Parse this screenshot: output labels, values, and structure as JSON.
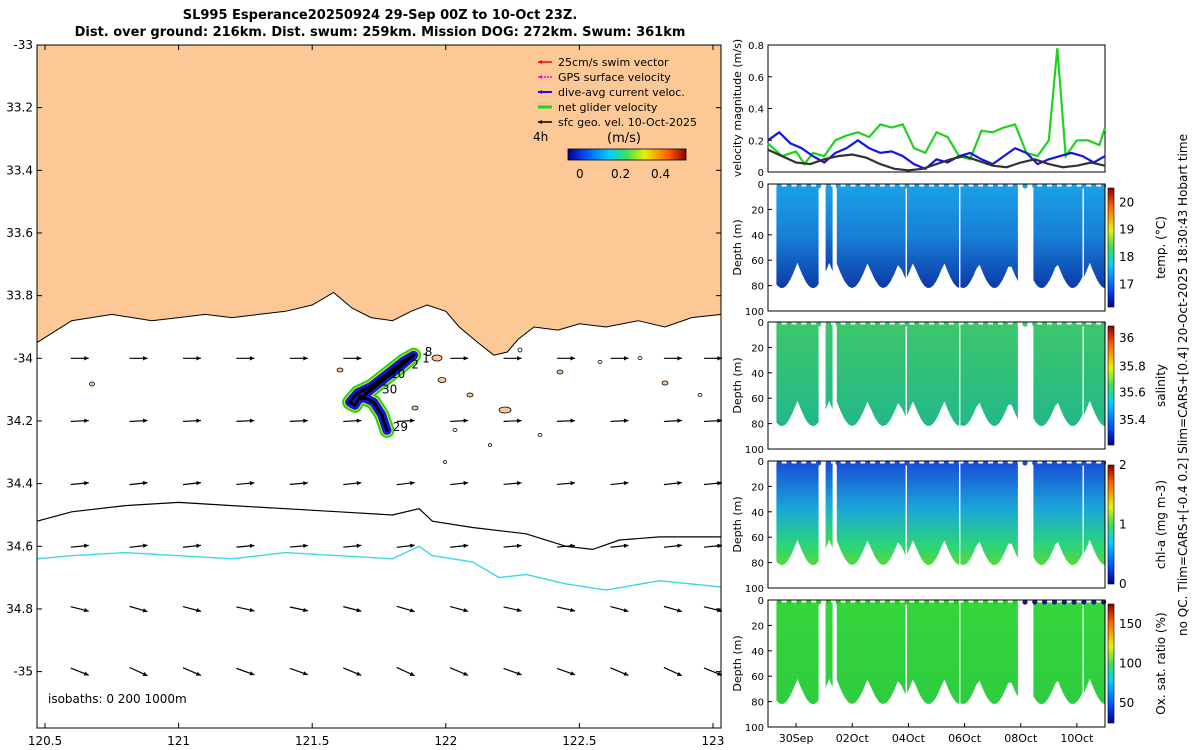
{
  "header": {
    "title_line1": "SL995 Esperance20250924 29-Sep 00Z to 10-Oct 23Z.",
    "title_line2": "Dist. over ground: 216km. Dist. swum: 259km. Mission DOG: 272km. Swum: 361km"
  },
  "colors": {
    "land": "#fcc996",
    "cyan_isobath": "#3fd7e8",
    "track_green": "#1ed21e",
    "track_blue": "#1414e6"
  },
  "chart_data": [
    {
      "type": "map",
      "title": "SL995 Esperance20250924 29-Sep 00Z to 10-Oct 23Z.",
      "xlim": [
        120.47,
        123.03
      ],
      "ylim": [
        -35.18,
        -33.0
      ],
      "x_ticks": [
        120.5,
        121,
        121.5,
        122,
        122.5,
        123
      ],
      "x_tick_labels": [
        "120.5",
        "121",
        "121.5",
        "122",
        "122.5",
        "123"
      ],
      "y_ticks": [
        -33,
        -33.2,
        -33.4,
        -33.6,
        -33.8,
        -34,
        -34.2,
        -34.4,
        -34.6,
        -34.8,
        -35
      ],
      "y_tick_labels": [
        "-33",
        "33.2",
        "33.4",
        "33.6",
        "33.8",
        "-34",
        "34.2",
        "34.4",
        "34.6",
        "34.8",
        "-35"
      ],
      "legend": {
        "items": [
          "25cm/s swim vector",
          "GPS surface velocity",
          "dive-avg current veloc.",
          "net glider velocity",
          "sfc geo. vel. 10-Oct-2025"
        ],
        "item_colors": [
          "#ff0000",
          "#ff00ff",
          "#1414e6",
          "#1ed21e",
          "#000000"
        ],
        "time_label": "4h",
        "colorbar_title": "(m/s)",
        "colorbar_ticks": [
          "0",
          "0.2",
          "0.4"
        ]
      },
      "coastline": [
        [
          120.47,
          -33.95
        ],
        [
          120.6,
          -33.88
        ],
        [
          120.75,
          -33.86
        ],
        [
          120.9,
          -33.88
        ],
        [
          121.0,
          -33.87
        ],
        [
          121.1,
          -33.86
        ],
        [
          121.2,
          -33.87
        ],
        [
          121.3,
          -33.86
        ],
        [
          121.4,
          -33.85
        ],
        [
          121.5,
          -33.83
        ],
        [
          121.58,
          -33.79
        ],
        [
          121.65,
          -33.84
        ],
        [
          121.72,
          -33.87
        ],
        [
          121.8,
          -33.88
        ],
        [
          121.87,
          -33.85
        ],
        [
          121.93,
          -33.83
        ],
        [
          122.0,
          -33.85
        ],
        [
          122.05,
          -33.9
        ],
        [
          122.12,
          -33.95
        ],
        [
          122.18,
          -33.99
        ],
        [
          122.23,
          -33.98
        ],
        [
          122.27,
          -33.94
        ],
        [
          122.33,
          -33.9
        ],
        [
          122.42,
          -33.91
        ],
        [
          122.5,
          -33.89
        ],
        [
          122.6,
          -33.9
        ],
        [
          122.72,
          -33.88
        ],
        [
          122.82,
          -33.9
        ],
        [
          122.92,
          -33.87
        ],
        [
          123.03,
          -33.86
        ]
      ],
      "isobath_1000m": [
        [
          120.47,
          -34.52
        ],
        [
          120.6,
          -34.49
        ],
        [
          120.8,
          -34.47
        ],
        [
          121.0,
          -34.46
        ],
        [
          121.2,
          -34.47
        ],
        [
          121.4,
          -34.48
        ],
        [
          121.6,
          -34.49
        ],
        [
          121.8,
          -34.5
        ],
        [
          121.9,
          -34.48
        ],
        [
          121.95,
          -34.52
        ],
        [
          122.1,
          -34.54
        ],
        [
          122.3,
          -34.56
        ],
        [
          122.45,
          -34.6
        ],
        [
          122.55,
          -34.61
        ],
        [
          122.65,
          -34.58
        ],
        [
          122.8,
          -34.57
        ],
        [
          123.03,
          -34.57
        ]
      ],
      "isobath_200m": [
        [
          120.47,
          -34.64
        ],
        [
          120.6,
          -34.63
        ],
        [
          120.8,
          -34.62
        ],
        [
          121.0,
          -34.63
        ],
        [
          121.2,
          -34.64
        ],
        [
          121.4,
          -34.62
        ],
        [
          121.6,
          -34.63
        ],
        [
          121.8,
          -34.64
        ],
        [
          121.9,
          -34.6
        ],
        [
          121.95,
          -34.63
        ],
        [
          122.1,
          -34.65
        ],
        [
          122.2,
          -34.7
        ],
        [
          122.3,
          -34.69
        ],
        [
          122.45,
          -34.72
        ],
        [
          122.6,
          -34.74
        ],
        [
          122.8,
          -34.71
        ],
        [
          123.03,
          -34.73
        ]
      ],
      "track": [
        [
          121.78,
          -34.23
        ],
        [
          121.76,
          -34.18
        ],
        [
          121.73,
          -34.14
        ],
        [
          121.68,
          -34.12
        ],
        [
          121.66,
          -34.15
        ],
        [
          121.64,
          -34.14
        ],
        [
          121.67,
          -34.11
        ],
        [
          121.72,
          -34.09
        ],
        [
          121.78,
          -34.05
        ],
        [
          121.84,
          -34.01
        ],
        [
          121.88,
          -33.99
        ],
        [
          121.84,
          -34.02
        ],
        [
          121.78,
          -34.06
        ],
        [
          121.72,
          -34.1
        ],
        [
          121.68,
          -34.13
        ]
      ],
      "track_labels": [
        {
          "text": "29",
          "lon": 121.79,
          "lat": -34.22
        },
        {
          "text": "30",
          "lon": 121.75,
          "lat": -34.1
        },
        {
          "text": "1",
          "lon": 121.67,
          "lat": -34.12
        },
        {
          "text": "2",
          "lon": 121.86,
          "lat": -34.02
        },
        {
          "text": "1",
          "lon": 121.9,
          "lat": -34.0
        },
        {
          "text": "8",
          "lon": 121.91,
          "lat": -33.98
        },
        {
          "text": "10",
          "lon": 121.78,
          "lat": -34.05
        }
      ],
      "isobath_note": "isobaths: 0   200  1000m",
      "vector_grid": {
        "lons": [
          120.63,
          120.85,
          121.05,
          121.25,
          121.45,
          121.65,
          121.85,
          122.05,
          122.25,
          122.45,
          122.65,
          122.85,
          123.0
        ],
        "lats": [
          -34.0,
          -34.2,
          -34.4,
          -34.6,
          -34.8,
          -35.0
        ],
        "u": [
          0.2,
          0.2,
          0.2,
          0.2,
          0.2,
          0.2
        ],
        "v": [
          0.0,
          0.01,
          0.02,
          0.02,
          -0.05,
          -0.08
        ]
      }
    },
    {
      "type": "line",
      "ylabel": "velocity magnitude (m/s)",
      "ylim": [
        0,
        0.8
      ],
      "y_ticks": [
        0,
        0.2,
        0.4,
        0.6,
        0.8
      ],
      "y_tick_labels": [
        "0",
        "0.2",
        "0.4",
        "0.6",
        "0.8"
      ],
      "x_range_days": [
        29.0,
        41.0
      ],
      "series": [
        {
          "name": "net glider velocity",
          "color": "#1ed21e",
          "x": [
            29.0,
            29.5,
            30.0,
            30.3,
            30.6,
            31.0,
            31.4,
            31.8,
            32.2,
            32.6,
            33.0,
            33.4,
            33.8,
            34.2,
            34.6,
            35.0,
            35.4,
            35.8,
            36.2,
            36.6,
            37.0,
            37.4,
            37.8,
            38.2,
            38.6,
            39.0,
            39.3,
            39.6,
            40.0,
            40.4,
            40.8,
            41.0
          ],
          "values": [
            0.18,
            0.1,
            0.13,
            0.05,
            0.12,
            0.1,
            0.2,
            0.23,
            0.25,
            0.22,
            0.3,
            0.28,
            0.3,
            0.15,
            0.12,
            0.25,
            0.22,
            0.1,
            0.08,
            0.26,
            0.25,
            0.28,
            0.3,
            0.12,
            0.1,
            0.2,
            0.78,
            0.1,
            0.2,
            0.2,
            0.17,
            0.28
          ]
        },
        {
          "name": "dive-avg current veloc.",
          "color": "#1414e6",
          "x": [
            29.0,
            29.4,
            29.8,
            30.2,
            30.6,
            31.0,
            31.4,
            31.8,
            32.2,
            32.6,
            33.0,
            33.4,
            33.8,
            34.2,
            34.6,
            35.0,
            35.4,
            35.8,
            36.2,
            36.6,
            37.0,
            37.4,
            37.8,
            38.2,
            38.6,
            39.0,
            39.4,
            39.8,
            40.2,
            40.6,
            41.0
          ],
          "values": [
            0.2,
            0.25,
            0.18,
            0.15,
            0.1,
            0.06,
            0.12,
            0.15,
            0.2,
            0.15,
            0.12,
            0.13,
            0.1,
            0.05,
            0.02,
            0.08,
            0.06,
            0.1,
            0.12,
            0.08,
            0.05,
            0.1,
            0.15,
            0.12,
            0.05,
            0.08,
            0.1,
            0.12,
            0.1,
            0.06,
            0.1
          ]
        },
        {
          "name": "sfc geo. vel.",
          "color": "#333333",
          "x": [
            29.0,
            29.5,
            30.0,
            30.5,
            31.0,
            31.5,
            32.0,
            32.5,
            33.0,
            33.5,
            34.0,
            34.5,
            35.0,
            35.5,
            36.0,
            36.5,
            37.0,
            37.5,
            38.0,
            38.5,
            39.0,
            39.5,
            40.0,
            40.5,
            41.0
          ],
          "values": [
            0.14,
            0.1,
            0.06,
            0.05,
            0.08,
            0.1,
            0.11,
            0.09,
            0.05,
            0.02,
            0.01,
            0.02,
            0.05,
            0.08,
            0.1,
            0.07,
            0.04,
            0.03,
            0.06,
            0.08,
            0.05,
            0.03,
            0.04,
            0.06,
            0.04
          ]
        }
      ]
    },
    {
      "type": "heatmap",
      "ylabel": "Depth (m)",
      "clabel": "temp. (°C)",
      "ylim": [
        100,
        0
      ],
      "y_tick_labels": [
        "0",
        "20",
        "40",
        "60",
        "80",
        "100"
      ],
      "clim": [
        16.3,
        20.7
      ],
      "colorbar_ticks": [
        "17",
        "18",
        "19",
        "20"
      ]
    },
    {
      "type": "heatmap",
      "ylabel": "Depth (m)",
      "clabel": "salinity",
      "ylim": [
        100,
        0
      ],
      "y_tick_labels": [
        "0",
        "20",
        "40",
        "60",
        "80",
        "100"
      ],
      "clim": [
        35.22,
        36.1
      ],
      "colorbar_ticks": [
        "35.4",
        "35.6",
        "35.8",
        "36"
      ]
    },
    {
      "type": "heatmap",
      "ylabel": "Depth (m)",
      "clabel": "chl-a (mg m-3)",
      "ylim": [
        100,
        0
      ],
      "y_tick_labels": [
        "0",
        "20",
        "40",
        "60",
        "80",
        "100"
      ],
      "clim": [
        0,
        2
      ],
      "colorbar_ticks": [
        "0",
        "1",
        "2"
      ]
    },
    {
      "type": "heatmap",
      "ylabel": "Depth (m)",
      "clabel": "Ox. sat. ratio (%)",
      "ylim": [
        100,
        0
      ],
      "y_tick_labels": [
        "0",
        "20",
        "40",
        "60",
        "80",
        "100"
      ],
      "clim": [
        25,
        175
      ],
      "colorbar_ticks": [
        "50",
        "100",
        "150"
      ],
      "x_tick_labels": [
        "30Sep",
        "02Oct",
        "04Oct",
        "06Oct",
        "08Oct",
        "10Oct"
      ],
      "x_tick_days": [
        30,
        32,
        34,
        36,
        38,
        40
      ]
    }
  ],
  "side_caption": "no QC. Tlim=CARS+[-0.4 0.2] Slim=CARS+[0.4] 20-Oct-2025 18:30:43 Hobart time"
}
